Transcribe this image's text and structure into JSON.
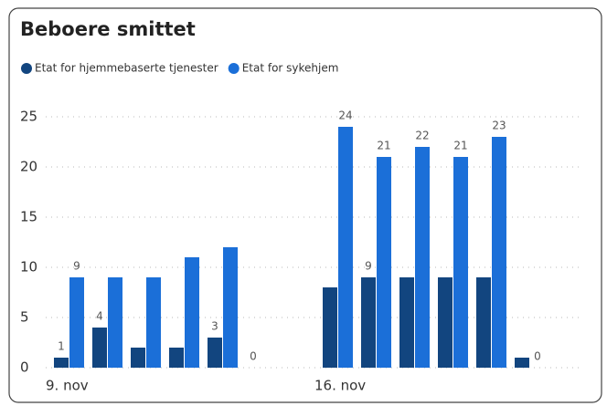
{
  "chart_data": {
    "type": "bar",
    "title": "Beboere smittet",
    "categories": [
      "9. nov",
      null,
      null,
      null,
      null,
      null,
      null,
      "16. nov",
      null,
      null,
      null,
      null,
      null
    ],
    "series": [
      {
        "name": "Etat for hjemmebaserte tjenester",
        "color": "#12457f",
        "values": [
          1,
          4,
          2,
          2,
          3,
          0,
          null,
          8,
          9,
          9,
          9,
          9,
          1
        ],
        "value_labels": [
          "1",
          "4",
          null,
          null,
          "3",
          "0",
          null,
          null,
          "9",
          null,
          null,
          null,
          null
        ]
      },
      {
        "name": "Etat for sykehjem",
        "color": "#1b6fd8",
        "values": [
          9,
          9,
          9,
          11,
          12,
          0,
          null,
          24,
          21,
          22,
          21,
          23,
          0
        ],
        "value_labels": [
          "9",
          null,
          null,
          null,
          null,
          null,
          null,
          "24",
          "21",
          "22",
          "21",
          "23",
          "0"
        ]
      }
    ],
    "ylim": [
      0,
      25
    ],
    "yticks": [
      0,
      5,
      10,
      15,
      20,
      25
    ],
    "grid": true
  }
}
